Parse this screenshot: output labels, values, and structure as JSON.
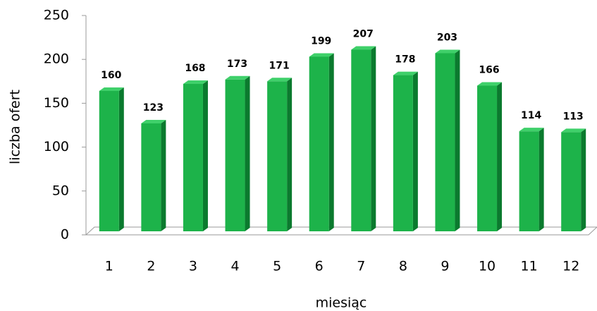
{
  "chart_data": {
    "type": "bar3d",
    "x_label": "miesiąc",
    "y_label": "liczba ofert",
    "categories": [
      "1",
      "2",
      "3",
      "4",
      "5",
      "6",
      "7",
      "8",
      "9",
      "10",
      "11",
      "12"
    ],
    "values": [
      160,
      123,
      168,
      173,
      171,
      199,
      207,
      178,
      203,
      166,
      114,
      113
    ],
    "color": "#1db34a",
    "ylim": [
      0,
      250
    ],
    "yticks": [
      0,
      50,
      100,
      150,
      200,
      250
    ],
    "grid": false
  }
}
